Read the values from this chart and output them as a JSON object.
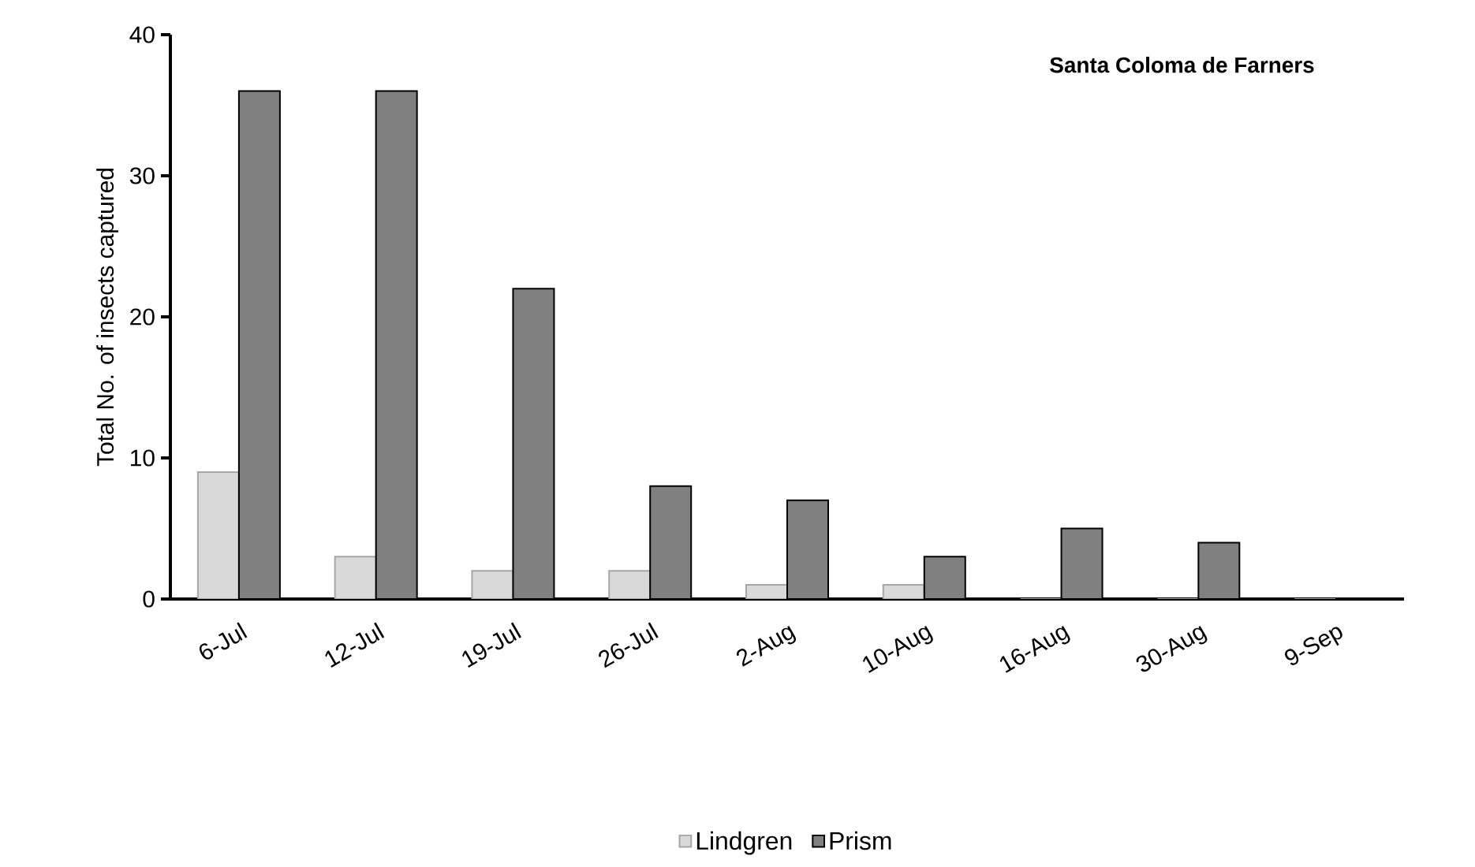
{
  "chart_data": {
    "type": "bar",
    "title": "Santa Coloma de Farners",
    "ylabel": "Total No. of insects captured",
    "categories": [
      "6-Jul",
      "12-Jul",
      "19-Jul",
      "26-Jul",
      "2-Aug",
      "10-Aug",
      "16-Aug",
      "30-Aug",
      "9-Sep"
    ],
    "series": [
      {
        "name": "Lindgren",
        "color": "#d9d9d9",
        "values": [
          9,
          3,
          2,
          2,
          1,
          1,
          0,
          0,
          0
        ]
      },
      {
        "name": "Prism",
        "color": "#808080",
        "values": [
          36,
          36,
          22,
          8,
          7,
          3,
          5,
          4,
          0
        ]
      }
    ],
    "ylim": [
      0,
      40
    ],
    "yticks": [
      0,
      10,
      20,
      30,
      40
    ],
    "grid": false,
    "legend": "bottom"
  }
}
